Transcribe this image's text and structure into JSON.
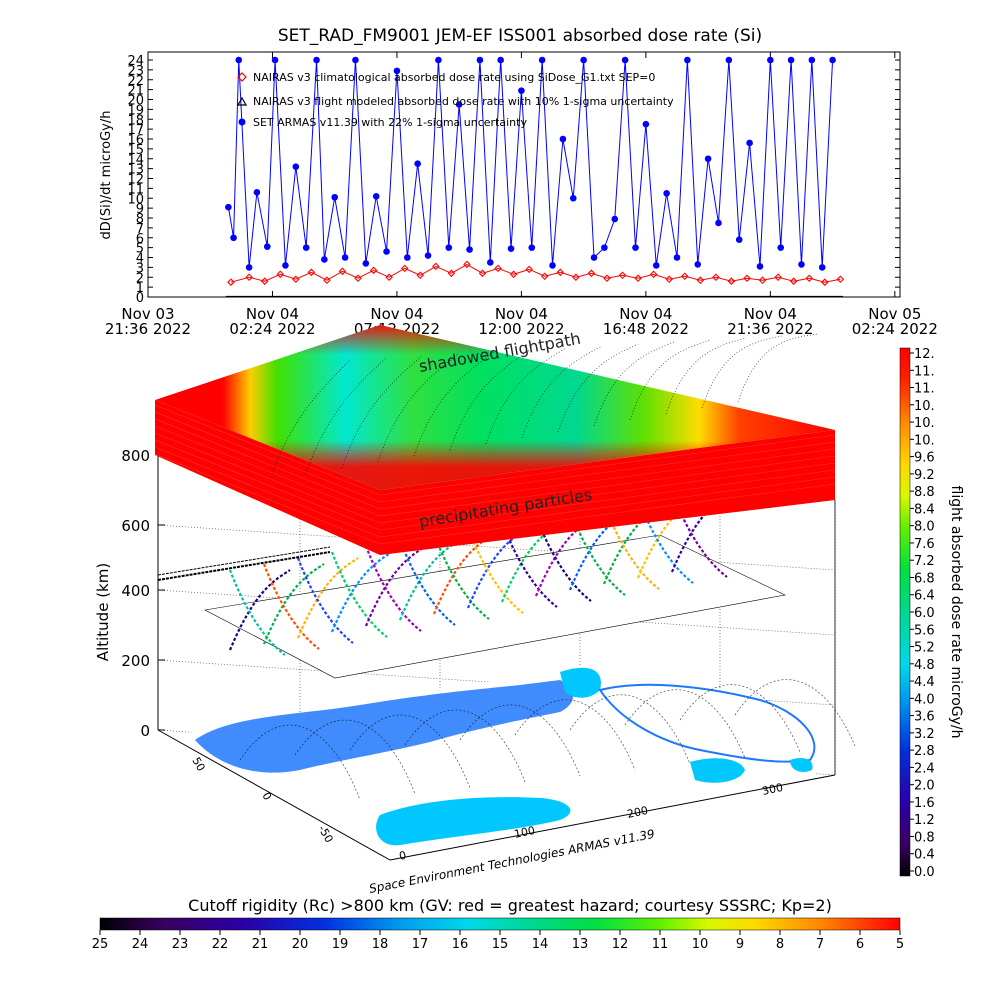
{
  "chart_data": [
    {
      "type": "line",
      "title": "SET_RAD_FM9001  JEM-EF ISS001 absorbed dose rate (Si)",
      "ylabel": "dD(Si)/dt microGy/h",
      "ylim": [
        0,
        24
      ],
      "yticks": [
        0,
        1,
        2,
        3,
        4,
        5,
        6,
        7,
        8,
        9,
        10,
        11,
        12,
        13,
        14,
        15,
        16,
        17,
        18,
        19,
        20,
        21,
        22,
        23,
        24
      ],
      "xlim_hours": [
        0,
        29
      ],
      "xticks": [
        {
          "l1": "Nov 03",
          "l2": "21:36 2022",
          "h": 0
        },
        {
          "l1": "Nov 04",
          "l2": "02:24 2022",
          "h": 4.8
        },
        {
          "l1": "Nov 04",
          "l2": "07:12 2022",
          "h": 9.6
        },
        {
          "l1": "Nov 04",
          "l2": "12:00 2022",
          "h": 14.4
        },
        {
          "l1": "Nov 04",
          "l2": "16:48 2022",
          "h": 19.2
        },
        {
          "l1": "Nov 04",
          "l2": "21:36 2022",
          "h": 24
        },
        {
          "l1": "Nov 05",
          "l2": "02:24 2022",
          "h": 28.8
        }
      ],
      "legend_placement": "top-left",
      "series": [
        {
          "name": "NAIRAS v3 climatological absorbed dose rate using SiDose_G1.txt SEP=0",
          "marker": "diamond",
          "color": "#ff0000",
          "x": [
            3.2,
            3.9,
            4.5,
            5.1,
            5.7,
            6.3,
            6.9,
            7.5,
            8.1,
            8.7,
            9.3,
            9.9,
            10.5,
            11.1,
            11.7,
            12.3,
            12.9,
            13.5,
            14.1,
            14.7,
            15.3,
            15.9,
            16.5,
            17.1,
            17.7,
            18.3,
            18.9,
            19.5,
            20.1,
            20.7,
            21.3,
            21.9,
            22.5,
            23.1,
            23.7,
            24.3,
            24.9,
            25.5,
            26.1,
            26.7
          ],
          "y": [
            1.5,
            2.0,
            1.6,
            2.3,
            1.8,
            2.5,
            1.7,
            2.6,
            1.9,
            2.7,
            2.0,
            2.9,
            2.2,
            3.1,
            2.4,
            3.3,
            2.4,
            2.9,
            2.3,
            2.8,
            2.1,
            2.5,
            2.0,
            2.4,
            1.9,
            2.2,
            1.9,
            2.3,
            1.8,
            2.1,
            1.7,
            2.0,
            1.6,
            1.9,
            1.7,
            2.0,
            1.6,
            1.9,
            1.5,
            1.8
          ]
        },
        {
          "name": "NAIRAS v3 flight modeled absorbed dose rate with 10% 1-sigma uncertainty",
          "marker": "triangle",
          "color": "#000000",
          "x": [
            3.0,
            26.8
          ],
          "y": [
            0,
            0
          ]
        },
        {
          "name": "SET ARMAS v11.39 with 22% 1-sigma uncertainty",
          "marker": "circle",
          "color": "#0000ff",
          "x": [
            3.1,
            3.3,
            3.5,
            3.9,
            4.2,
            4.6,
            4.9,
            5.3,
            5.7,
            6.1,
            6.5,
            6.8,
            7.2,
            7.6,
            8.0,
            8.4,
            8.8,
            9.2,
            9.6,
            10.0,
            10.4,
            10.8,
            11.2,
            11.6,
            12.0,
            12.4,
            12.8,
            13.2,
            13.6,
            14.0,
            14.4,
            14.8,
            15.2,
            15.6,
            16.0,
            16.4,
            16.8,
            17.2,
            17.6,
            18.0,
            18.4,
            18.8,
            19.2,
            19.6,
            20.0,
            20.4,
            20.8,
            21.2,
            21.6,
            22.0,
            22.4,
            22.8,
            23.2,
            23.6,
            24.0,
            24.4,
            24.8,
            25.2,
            25.6,
            26.0,
            26.4
          ],
          "y": [
            9.1,
            6.0,
            24,
            3.0,
            10.6,
            5.1,
            24,
            3.2,
            13.2,
            5.0,
            24,
            3.8,
            10.1,
            4.0,
            24,
            3.4,
            10.2,
            4.6,
            22.9,
            4.0,
            13.5,
            4.2,
            24,
            5.0,
            19.5,
            4.8,
            24,
            3.5,
            24,
            4.9,
            20.9,
            5.0,
            24,
            3.2,
            16.0,
            10.0,
            24,
            4.0,
            5.0,
            7.9,
            24,
            5.0,
            17.5,
            3.2,
            10.5,
            4.0,
            24,
            3.3,
            14.0,
            7.5,
            24,
            5.8,
            15.6,
            3.1,
            24,
            5.0,
            24,
            3.3,
            24,
            3.0,
            24
          ]
        }
      ]
    },
    {
      "type": "3d-surface",
      "zlabel": "Altitude (km)",
      "zticks": [
        "0",
        "200",
        "400",
        "600",
        "800"
      ],
      "lat_ticks": [
        "50",
        "0",
        "-50"
      ],
      "lon_ticks": [
        "0",
        "100",
        "200",
        "300"
      ],
      "annotations": [
        "shadowed flightpath",
        "precipitating particles"
      ],
      "credit": "Space Environment Technologies ARMAS v11.39"
    },
    {
      "type": "heatmap",
      "colorbar_right": {
        "label": "flight absorbed dose rate microGy/h",
        "range": [
          0,
          12
        ],
        "ticks": [
          "12.",
          "11.",
          "11.",
          "10.",
          "10.",
          "10.",
          "9.6",
          "9.2",
          "8.8",
          "8.4",
          "8.0",
          "7.6",
          "7.2",
          "6.8",
          "6.4",
          "6.0",
          "5.6",
          "5.2",
          "4.8",
          "4.4",
          "4.0",
          "3.6",
          "3.2",
          "2.8",
          "2.4",
          "2.0",
          "1.6",
          "1.2",
          "0.8",
          "0.4",
          "0.0"
        ]
      },
      "colorbar_bottom": {
        "label": "Cutoff rigidity (Rc) >800 km (GV: red = greatest hazard; courtesy SSSRC; Kp=2)",
        "range": [
          25,
          5
        ],
        "ticks": [
          "25",
          "24",
          "23",
          "22",
          "21",
          "20",
          "19",
          "18",
          "17",
          "16",
          "15",
          "14",
          "13",
          "12",
          "11",
          "10",
          "9",
          "8",
          "7",
          "6",
          "5"
        ]
      }
    }
  ]
}
